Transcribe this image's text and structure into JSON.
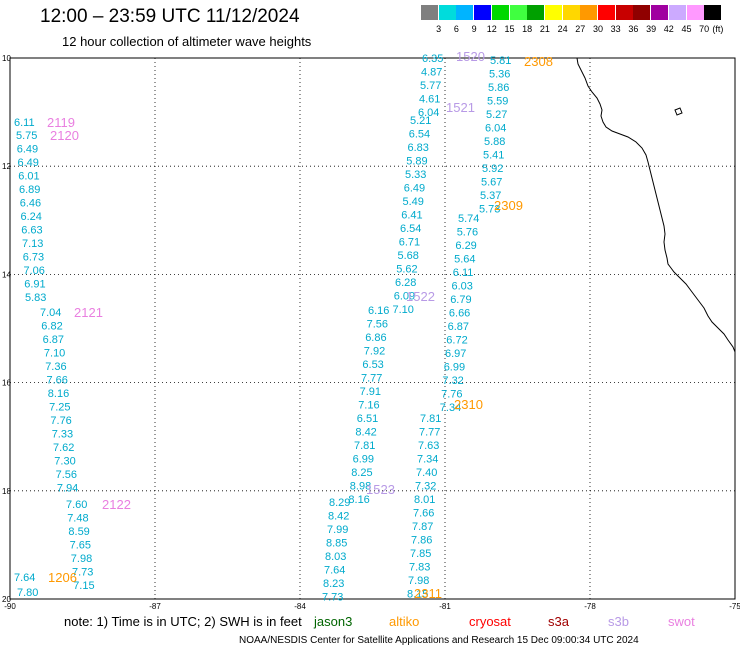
{
  "header": {
    "title": "12:00 – 23:59 UTC 11/12/2024",
    "subtitle": "12 hour collection of altimeter wave heights"
  },
  "scale": {
    "unit": "(ft)",
    "labels": [
      "3",
      "6",
      "9",
      "12",
      "15",
      "18",
      "21",
      "24",
      "27",
      "30",
      "33",
      "36",
      "39",
      "42",
      "45",
      "70"
    ],
    "colors": [
      "#7f7f7f",
      "#00dcdc",
      "#00b4ff",
      "#0000ff",
      "#00d800",
      "#40ff40",
      "#00a000",
      "#ffff00",
      "#ffd700",
      "#ff9900",
      "#ff0000",
      "#c80000",
      "#900000",
      "#a000a0",
      "#ccaaff",
      "#ff99ff",
      "#000000"
    ]
  },
  "map": {
    "lat_labels": [
      "10",
      "12",
      "14",
      "16",
      "18",
      "20"
    ],
    "lon_labels": [
      "-90",
      "-87",
      "-84",
      "-81",
      "-78",
      "-75"
    ]
  },
  "tracks": [
    {
      "id": "2119",
      "sat": "swot",
      "color": "#e97fe0",
      "values": [
        6.11
      ]
    },
    {
      "id": "2120",
      "sat": "swot",
      "color": "#e97fe0",
      "values": [
        5.75,
        6.49,
        6.49,
        6.01,
        6.89,
        6.46,
        6.24,
        6.63,
        7.13,
        6.73,
        7.06,
        6.91,
        5.83
      ]
    },
    {
      "id": "2121",
      "sat": "swot",
      "color": "#e97fe0",
      "values": [
        7.04,
        6.82,
        6.87,
        7.1,
        7.36,
        7.66,
        8.16,
        7.25,
        7.76,
        7.33,
        7.62,
        7.3,
        7.56,
        7.94
      ]
    },
    {
      "id": "2122",
      "sat": "swot",
      "color": "#e97fe0",
      "values": [
        7.6,
        7.48,
        8.59,
        7.65,
        7.98,
        7.73,
        7.15,
        7.64,
        7.8
      ]
    },
    {
      "id": "1206",
      "sat": "altiko",
      "color": "#ff9900",
      "values": []
    },
    {
      "id": "1520",
      "sat": "s3b",
      "color": "#b89ae6",
      "values": [
        6.35,
        4.87,
        5.77,
        4.61,
        6.04
      ]
    },
    {
      "id": "1521",
      "sat": "s3b",
      "color": "#b89ae6",
      "values": [
        5.21,
        6.54,
        6.83,
        5.89,
        5.33,
        6.49,
        5.49,
        6.41,
        6.54,
        6.71,
        5.68,
        5.62,
        6.28,
        6.09,
        7.1
      ]
    },
    {
      "id": "1522",
      "sat": "s3b",
      "color": "#b89ae6",
      "values": [
        6.16,
        7.56,
        6.86,
        7.92,
        6.53,
        7.77,
        7.91,
        7.16,
        6.51,
        8.42,
        7.81,
        6.99,
        8.25,
        8.98,
        8.16
      ]
    },
    {
      "id": "1523",
      "sat": "s3b",
      "color": "#b89ae6",
      "values": [
        8.29,
        8.42,
        7.99,
        8.85,
        8.03,
        7.64,
        8.23,
        7.73
      ]
    },
    {
      "id": "2308",
      "sat": "altiko",
      "color": "#ff9900",
      "values": [
        5.81,
        5.36,
        5.86,
        5.59,
        5.27,
        6.04,
        5.88,
        5.41,
        5.92,
        5.67,
        5.37,
        5.73
      ]
    },
    {
      "id": "2309",
      "sat": "altiko",
      "color": "#ff9900",
      "values": [
        5.74,
        5.76,
        6.29,
        5.64,
        6.11,
        6.03,
        6.79,
        6.66,
        6.87,
        6.72,
        6.97,
        6.99,
        7.32,
        7.76,
        7.34
      ]
    },
    {
      "id": "2310",
      "sat": "altiko",
      "color": "#ff9900",
      "values": [
        7.81,
        7.77,
        7.63,
        7.34,
        7.4,
        7.32,
        8.01,
        7.66,
        7.87,
        7.86,
        7.85,
        7.83,
        7.98,
        8.15
      ]
    },
    {
      "id": "2311",
      "sat": "altiko",
      "color": "#ff9900",
      "values": []
    }
  ],
  "footer": {
    "note": "note:  1) Time is in UTC;  2) SWH is in feet",
    "legend": [
      {
        "label": "jason3",
        "color": "#006400"
      },
      {
        "label": "altiko",
        "color": "#ff9900"
      },
      {
        "label": "cryosat",
        "color": "#ff0000"
      },
      {
        "label": "s3a",
        "color": "#a00000"
      },
      {
        "label": "s3b",
        "color": "#b89ae6"
      },
      {
        "label": "swot",
        "color": "#e97fe0"
      }
    ],
    "credit": "NOAA/NESDIS Center for Satellite Applications and Research    15 Dec 09:00:34 UTC 2024"
  }
}
